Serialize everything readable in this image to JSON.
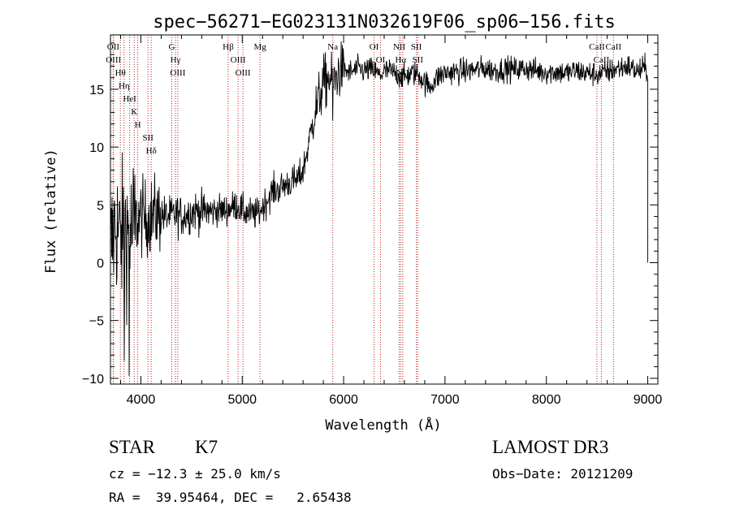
{
  "chart_data": {
    "type": "line",
    "title": "spec−56271−EG023131N032619F06_sp06−156.fits",
    "xlabel": "Wavelength (Å)",
    "ylabel": "Flux (relative)",
    "xlim": [
      3700,
      9100
    ],
    "ylim": [
      -10.5,
      19.7
    ],
    "xticks": [
      4000,
      5000,
      6000,
      7000,
      8000,
      9000
    ],
    "yticks": [
      -10,
      -5,
      0,
      5,
      10,
      15
    ],
    "xtick_labels": [
      "4000",
      "5000",
      "6000",
      "7000",
      "8000",
      "9000"
    ],
    "ytick_labels": [
      "−10",
      "−5",
      "0",
      "5",
      "10",
      "15"
    ],
    "grid": false,
    "series": [
      {
        "name": "flux",
        "color": "#000000",
        "x": [
          3700,
          3750,
          3800,
          3850,
          3900,
          3950,
          4000,
          4050,
          4100,
          4150,
          4200,
          4250,
          4300,
          4350,
          4400,
          4450,
          4500,
          4550,
          4600,
          4650,
          4700,
          4750,
          4800,
          4850,
          4900,
          4950,
          5000,
          5050,
          5100,
          5150,
          5200,
          5250,
          5300,
          5350,
          5400,
          5450,
          5500,
          5550,
          5600,
          5650,
          5700,
          5750,
          5800,
          5850,
          5900,
          5950,
          6000,
          6050,
          6100,
          6150,
          6200,
          6250,
          6300,
          6350,
          6400,
          6450,
          6500,
          6550,
          6600,
          6650,
          6700,
          6750,
          6800,
          6850,
          6900,
          6950,
          7000,
          7100,
          7200,
          7300,
          7400,
          7500,
          7600,
          7700,
          7800,
          7900,
          8000,
          8100,
          8200,
          8300,
          8400,
          8500,
          8600,
          8700,
          8800,
          8850,
          8900,
          8950,
          9000
        ],
        "y": [
          1.0,
          3.5,
          2.0,
          3.0,
          2.5,
          3.5,
          4.0,
          3.8,
          4.0,
          4.2,
          4.2,
          4.0,
          4.0,
          4.2,
          4.0,
          4.2,
          4.4,
          4.5,
          4.4,
          4.5,
          4.4,
          4.6,
          4.5,
          4.6,
          4.8,
          5.0,
          4.5,
          4.3,
          4.2,
          4.2,
          4.8,
          5.5,
          6.2,
          6.3,
          6.6,
          6.9,
          7.0,
          7.2,
          8.0,
          10.0,
          12.5,
          14.0,
          15.5,
          16.0,
          15.5,
          16.5,
          16.8,
          16.4,
          16.6,
          16.8,
          16.6,
          16.7,
          16.6,
          16.2,
          16.5,
          16.6,
          16.4,
          16.2,
          16.0,
          16.3,
          16.4,
          16.2,
          15.6,
          15.2,
          15.8,
          16.2,
          16.4,
          16.5,
          16.6,
          16.7,
          16.8,
          16.6,
          16.8,
          16.7,
          16.8,
          16.6,
          16.5,
          16.5,
          16.4,
          16.6,
          16.4,
          16.3,
          16.5,
          16.8,
          17.0,
          16.8,
          16.5,
          16.8,
          16.7
        ]
      }
    ],
    "line_markers": [
      {
        "label": "Hθ",
        "x": 3798
      },
      {
        "label": "OII",
        "x": 3727
      },
      {
        "label": "OIII",
        "x": 3730
      },
      {
        "label": "K",
        "x": 3934
      },
      {
        "label": "HeI",
        "x": 3889
      },
      {
        "label": "Hη",
        "x": 3835
      },
      {
        "label": "Hδ",
        "x": 4102
      },
      {
        "label": "SII",
        "x": 4070
      },
      {
        "label": "H",
        "x": 3969
      },
      {
        "label": "OIII",
        "x": 4364
      },
      {
        "label": "Hγ",
        "x": 4341
      },
      {
        "label": "G",
        "x": 4305
      },
      {
        "label": "OIII",
        "x": 5007
      },
      {
        "label": "OIII",
        "x": 4959
      },
      {
        "label": "Hβ",
        "x": 4861
      },
      {
        "label": "Mg",
        "x": 5175
      },
      {
        "label": "Na",
        "x": 5893
      },
      {
        "label": "OI",
        "x": 6300
      },
      {
        "label": "OI",
        "x": 6364
      },
      {
        "label": "Hα",
        "x": 6563
      },
      {
        "label": "NII",
        "x": 6548
      },
      {
        "label": "NII",
        "x": 6583
      },
      {
        "label": "SII",
        "x": 6717
      },
      {
        "label": "SII",
        "x": 6731
      },
      {
        "label": "CaII",
        "x": 8542
      },
      {
        "label": "CaII",
        "x": 8498
      },
      {
        "label": "CaII",
        "x": 8662
      }
    ]
  },
  "info": {
    "object_class": "STAR",
    "subclass": "K7",
    "survey": "LAMOST DR3",
    "cz_line": "cz = −12.3 ± 25.0 km/s",
    "obs_date_line": "Obs−Date: 20121209",
    "coords_line": "RA =  39.95464, DEC =   2.65438"
  }
}
